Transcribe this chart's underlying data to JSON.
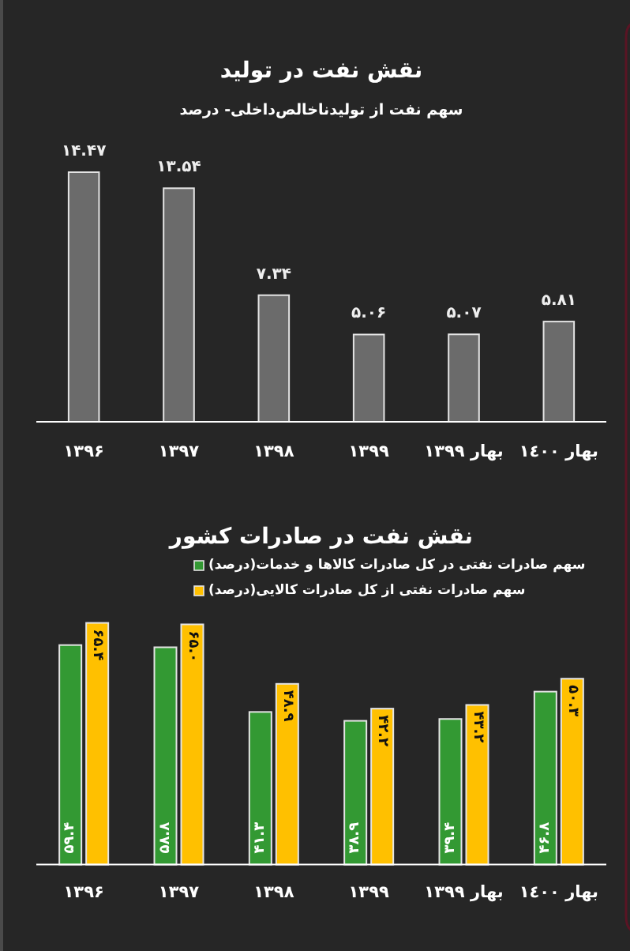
{
  "chart_data": [
    {
      "type": "bar",
      "title": "نقش نفت در تولید",
      "subtitle": "سهم نفت از تولیدناخالص‌داخلی- درصد",
      "categories": [
        "۱۳۹۶",
        "۱۳۹۷",
        "۱۳۹۸",
        "۱۳۹۹",
        "بهار ۱۳۹۹",
        "بهار ۱٤۰۰"
      ],
      "values": [
        14.47,
        13.54,
        7.34,
        5.06,
        5.07,
        5.81
      ],
      "value_labels": [
        "۱۴.۴۷",
        "۱۳.۵۴",
        "۷.۳۴",
        "۵.۰۶",
        "۵.۰۷",
        "۵.۸۱"
      ],
      "color": "#6b6b6b"
    },
    {
      "type": "bar",
      "title": "نقش نفت در صادرات کشور",
      "categories": [
        "۱۳۹۶",
        "۱۳۹۷",
        "۱۳۹۸",
        "۱۳۹۹",
        "بهار ۱۳۹۹",
        "بهار ۱٤۰۰"
      ],
      "series": [
        {
          "name": "سهم صادرات نفتی در کل صادرات کالاها و خدمات(درصد)",
          "color": "#339933",
          "values": [
            59.4,
            58.8,
            41.3,
            38.9,
            39.4,
            46.8
          ],
          "value_labels": [
            "۵۹.۴",
            "۵۸.۸",
            "۴۱.۳",
            "۳۸.۹",
            "۳۹.۴",
            "۴۶.۸"
          ]
        },
        {
          "name": "سهم صادرات نفتی از کل صادرات کالایی(درصد)",
          "color": "#ffc000",
          "values": [
            65.4,
            65.0,
            48.9,
            42.2,
            43.2,
            50.3
          ],
          "value_labels": [
            "۶۵.۴",
            "۶۵.۰",
            "۴۸.۹",
            "۴۲.۲",
            "۴۳.۲",
            "۵۰.۳"
          ]
        }
      ],
      "legend": "top"
    }
  ]
}
